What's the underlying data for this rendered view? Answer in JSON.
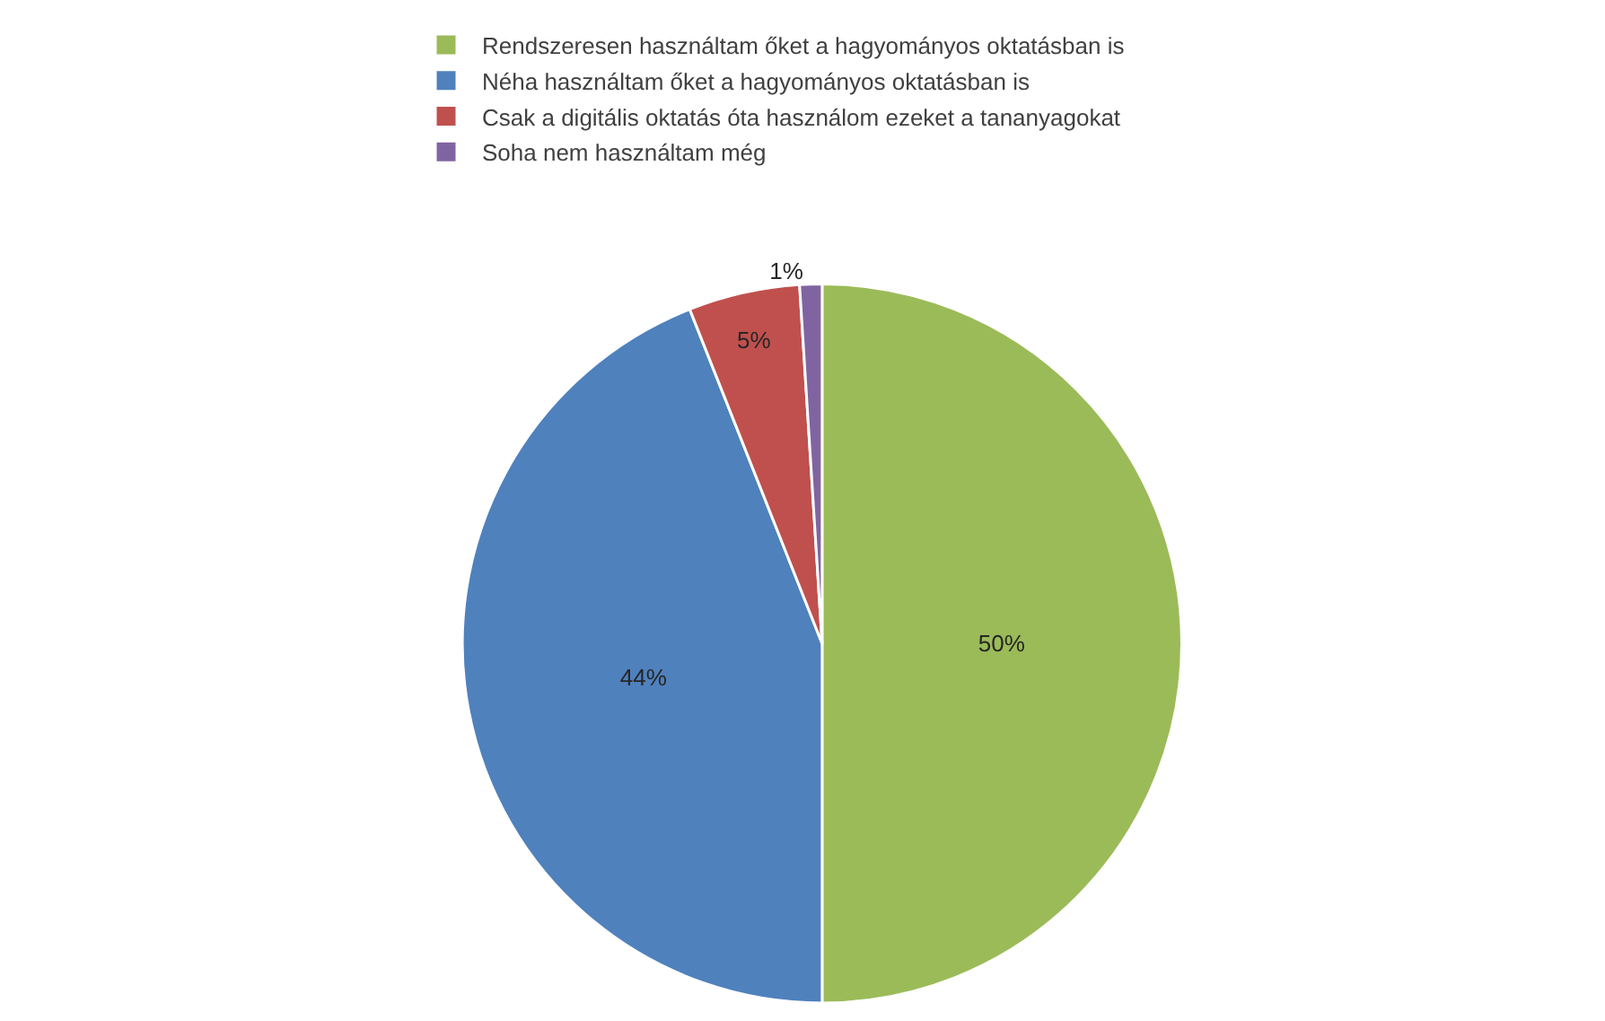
{
  "chart_data": {
    "type": "pie",
    "categories": [
      "Rendszeresen használtam őket a hagyományos oktatásban is",
      "Néha használtam őket a hagyományos oktatásban is",
      "Csak a digitális oktatás óta használom ezeket a tananyagokat",
      "Soha nem használtam még"
    ],
    "values": [
      50,
      44,
      5,
      1
    ],
    "colors": [
      "#9bbb59",
      "#4f81bd",
      "#c0504d",
      "#8064a2"
    ],
    "value_labels": [
      "50%",
      "44%",
      "5%",
      "1%"
    ],
    "legend": "top"
  }
}
